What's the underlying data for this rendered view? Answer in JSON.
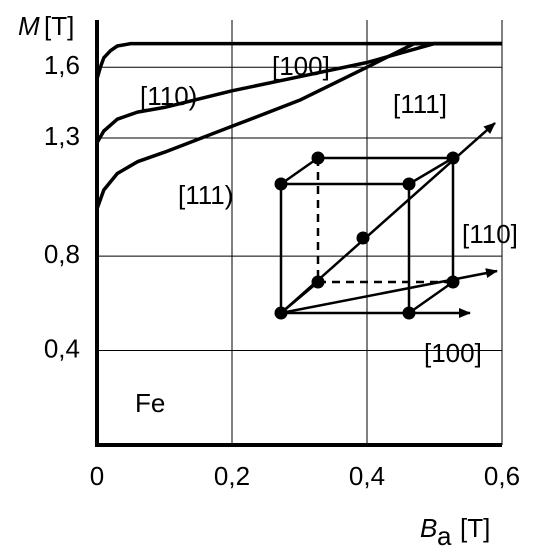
{
  "chart_data": {
    "type": "line",
    "y_label": {
      "symbol": "M",
      "unit": "[T]"
    },
    "x_label": {
      "symbol": "B",
      "subscript": "a",
      "unit": "[T]"
    },
    "xlim": [
      0,
      0.6
    ],
    "ylim": [
      0,
      1.8
    ],
    "xticks": [
      0,
      {
        "value": 0.2,
        "label": "0,2"
      },
      {
        "value": 0.4,
        "label": "0,4"
      },
      {
        "value": 0.6,
        "label": "0,6"
      }
    ],
    "yticks": [
      {
        "value": 0.4,
        "label": "0,4"
      },
      {
        "value": 0.8,
        "label": "0,8"
      },
      {
        "value": 1.3,
        "label": "1,3"
      },
      {
        "value": 1.6,
        "label": "1,6"
      }
    ],
    "grid": true,
    "series": [
      {
        "name": "[100]",
        "color": "#000000",
        "x": [
          0,
          0.005,
          0.01,
          0.02,
          0.03,
          0.05,
          0.6
        ],
        "values": [
          1.55,
          1.6,
          1.64,
          1.67,
          1.69,
          1.7,
          1.7
        ]
      },
      {
        "name": "[110)",
        "color": "#000000",
        "x": [
          0,
          0.01,
          0.03,
          0.06,
          0.1,
          0.2,
          0.3,
          0.4,
          0.5,
          0.6
        ],
        "values": [
          1.28,
          1.33,
          1.38,
          1.41,
          1.43,
          1.5,
          1.56,
          1.62,
          1.7,
          1.7
        ]
      },
      {
        "name": "[111)",
        "color": "#000000",
        "x": [
          0,
          0.01,
          0.03,
          0.06,
          0.1,
          0.2,
          0.3,
          0.4,
          0.47,
          0.6
        ],
        "values": [
          1.0,
          1.08,
          1.15,
          1.2,
          1.24,
          1.35,
          1.46,
          1.6,
          1.7,
          1.7
        ]
      }
    ],
    "annotations": [
      "Fe",
      "[111]",
      "[110]",
      "[100]"
    ]
  }
}
